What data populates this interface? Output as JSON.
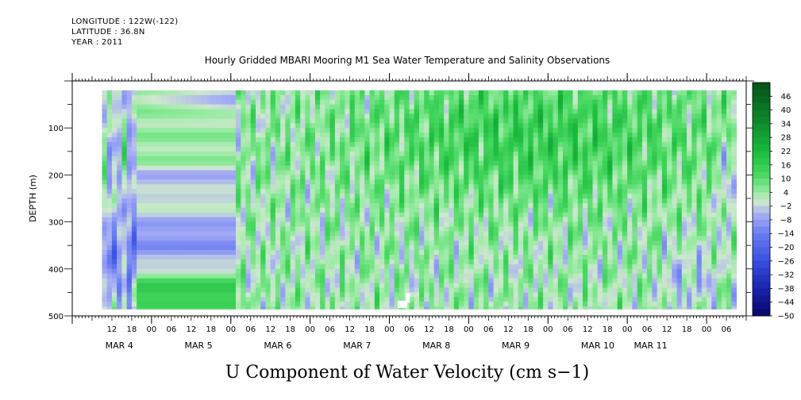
{
  "header": {
    "longitude": "LONGITUDE : 122W(-122)",
    "latitude": "LATITUDE : 36.8N",
    "year": "YEAR : 2011"
  },
  "chart_data": {
    "type": "heatmap",
    "title": "Hourly Gridded MBARI Mooring M1 Sea Water Temperature and Salinity Observations",
    "xlabel": "U Component of Water Velocity (cm s−1)",
    "ylabel": "DEPTH (m)",
    "ylim": [
      500,
      0
    ],
    "y_ticks": [
      100,
      200,
      300,
      400,
      500
    ],
    "x_hour_labels": [
      "12",
      "18",
      "00",
      "06",
      "12",
      "18",
      "00",
      "06",
      "12",
      "18",
      "00",
      "06",
      "12",
      "18",
      "00",
      "06",
      "12",
      "18",
      "00",
      "06",
      "12",
      "18",
      "00",
      "06",
      "12",
      "18",
      "00",
      "06",
      "12",
      "18",
      "00",
      "06"
    ],
    "x_day_labels": [
      "MAR  4",
      "MAR  5",
      "MAR  6",
      "MAR  7",
      "MAR  8",
      "MAR  9",
      "MAR 10",
      "MAR 11"
    ],
    "x_range_hours": [
      0,
      204
    ],
    "data_x_range_hours": [
      9,
      201
    ],
    "data_depth_range": [
      20,
      485
    ],
    "colorbar": {
      "levels": [
        46,
        40,
        34,
        28,
        22,
        16,
        10,
        4,
        -2,
        -8,
        -14,
        -20,
        -26,
        -32,
        -38,
        -44,
        -50
      ],
      "min": -50,
      "max": 52,
      "colors": {
        "very_negative": "#0b0b7a",
        "negative": "#3a4fd8",
        "slightly_negative": "#a9b1f5",
        "near_zero": "#cfe9cf",
        "slightly_positive": "#86e48e",
        "positive": "#2fcc4a",
        "very_positive": "#0b6b22"
      }
    },
    "summary": "Velocity mostly between -14 and +28 cm/s; negative (blue) patches dominate Mar 4 to early Mar 6, stronger positive (green) flow near surface Mar 8 to Mar 10."
  }
}
